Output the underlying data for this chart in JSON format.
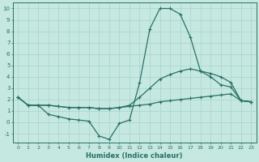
{
  "xlabel": "Humidex (Indice chaleur)",
  "xlim": [
    -0.5,
    23.5
  ],
  "ylim": [
    -1.8,
    10.5
  ],
  "xticks": [
    0,
    1,
    2,
    3,
    4,
    5,
    6,
    7,
    8,
    9,
    10,
    11,
    12,
    13,
    14,
    15,
    16,
    17,
    18,
    19,
    20,
    21,
    22,
    23
  ],
  "yticks": [
    -1,
    0,
    1,
    2,
    3,
    4,
    5,
    6,
    7,
    8,
    9,
    10
  ],
  "background_color": "#c5e8e0",
  "grid_color": "#a8d4cc",
  "line_color": "#2a7068",
  "line1_x": [
    0,
    1,
    2,
    3,
    4,
    5,
    6,
    7,
    8,
    9,
    10,
    11,
    12,
    13,
    14,
    15,
    16,
    17,
    18,
    19,
    20,
    21,
    22,
    23
  ],
  "line1_y": [
    2.2,
    1.5,
    1.5,
    0.7,
    0.5,
    0.3,
    0.2,
    0.1,
    -1.2,
    -1.5,
    -0.1,
    0.2,
    3.5,
    8.2,
    10.0,
    10.0,
    9.5,
    7.5,
    4.5,
    4.0,
    3.3,
    3.1,
    1.9,
    1.8
  ],
  "line2_x": [
    0,
    1,
    2,
    3,
    4,
    5,
    6,
    7,
    8,
    9,
    10,
    11,
    12,
    13,
    14,
    15,
    16,
    17,
    18,
    19,
    20,
    21,
    22,
    23
  ],
  "line2_y": [
    2.2,
    1.5,
    1.5,
    1.5,
    1.4,
    1.3,
    1.3,
    1.3,
    1.2,
    1.2,
    1.3,
    1.5,
    2.2,
    3.0,
    3.8,
    4.2,
    4.5,
    4.7,
    4.5,
    4.3,
    4.0,
    3.5,
    1.9,
    1.8
  ],
  "line3_x": [
    0,
    1,
    2,
    3,
    4,
    5,
    6,
    7,
    8,
    9,
    10,
    11,
    12,
    13,
    14,
    15,
    16,
    17,
    18,
    19,
    20,
    21,
    22,
    23
  ],
  "line3_y": [
    2.2,
    1.5,
    1.5,
    1.5,
    1.4,
    1.3,
    1.3,
    1.3,
    1.2,
    1.2,
    1.3,
    1.4,
    1.5,
    1.6,
    1.8,
    1.9,
    2.0,
    2.1,
    2.2,
    2.3,
    2.4,
    2.5,
    1.9,
    1.8
  ]
}
